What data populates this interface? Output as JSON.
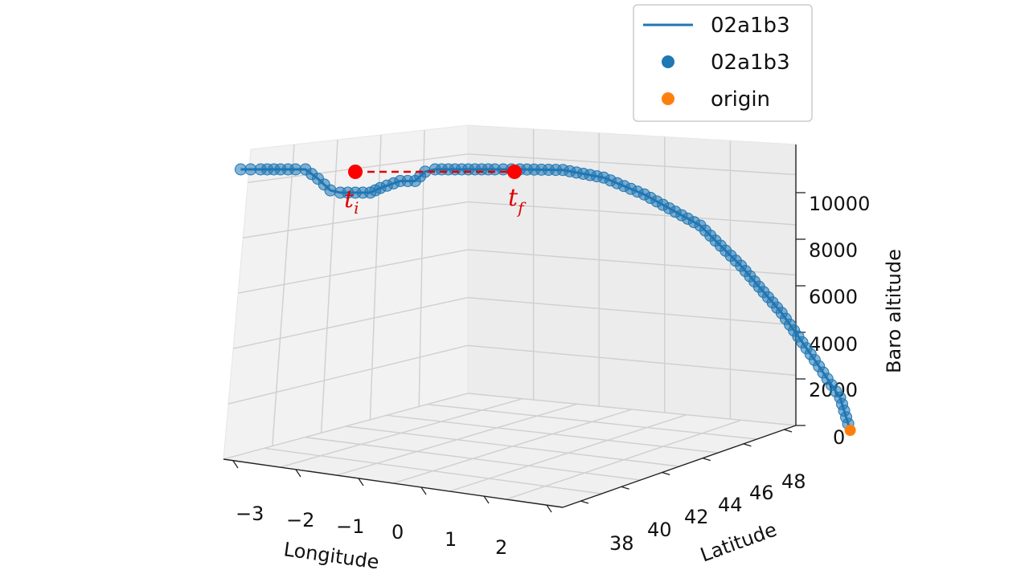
{
  "chart_data": {
    "type": "line",
    "projection": "3d",
    "xlabel": "Longitude",
    "ylabel": "Latitude",
    "zlabel": "Baro altitude",
    "x_ticks": [
      "−3",
      "−2",
      "−1",
      "0",
      "1",
      "2"
    ],
    "y_ticks": [
      "38",
      "40",
      "42",
      "44",
      "46",
      "48"
    ],
    "z_ticks": [
      "0",
      "2000",
      "4000",
      "6000",
      "8000",
      "10000"
    ],
    "grid": true,
    "legend_position": "top-right",
    "legend": [
      {
        "label": "02a1b3",
        "kind": "line",
        "color": "#1f77b4"
      },
      {
        "label": "02a1b3",
        "kind": "marker",
        "color": "#1f77b4"
      },
      {
        "label": "origin",
        "kind": "marker",
        "color": "#ff7f0e"
      }
    ],
    "series": [
      {
        "name": "02a1b3",
        "color": "#1f77b4",
        "points": [
          {
            "lon": -3.3,
            "lat": 44.0,
            "alt": 11000
          },
          {
            "lon": -3.1,
            "lat": 44.0,
            "alt": 11000
          },
          {
            "lon": -2.9,
            "lat": 44.0,
            "alt": 11000
          },
          {
            "lon": -2.5,
            "lat": 44.0,
            "alt": 11000
          },
          {
            "lon": -2.2,
            "lat": 44.0,
            "alt": 11000
          },
          {
            "lon": -2.0,
            "lat": 44.0,
            "alt": 11000
          },
          {
            "lon": -1.75,
            "lat": 44.0,
            "alt": 10600
          },
          {
            "lon": -1.5,
            "lat": 44.0,
            "alt": 10100
          },
          {
            "lon": -1.3,
            "lat": 44.0,
            "alt": 10000
          },
          {
            "lon": -0.7,
            "lat": 44.0,
            "alt": 10000
          },
          {
            "lon": -0.5,
            "lat": 44.0,
            "alt": 10200
          },
          {
            "lon": -0.1,
            "lat": 44.0,
            "alt": 10500
          },
          {
            "lon": 0.2,
            "lat": 44.0,
            "alt": 10500
          },
          {
            "lon": 0.4,
            "lat": 44.0,
            "alt": 10900
          },
          {
            "lon": 0.6,
            "lat": 44.0,
            "alt": 11000
          },
          {
            "lon": 1.0,
            "lat": 44.0,
            "alt": 11000
          },
          {
            "lon": 1.4,
            "lat": 44.0,
            "alt": 11000
          },
          {
            "lon": 1.8,
            "lat": 44.0,
            "alt": 11000
          },
          {
            "lon": 2.3,
            "lat": 44.0,
            "alt": 11000
          },
          {
            "lon": 2.4,
            "lat": 43.5,
            "alt": 11000
          },
          {
            "lon": 2.45,
            "lat": 43.0,
            "alt": 10700
          },
          {
            "lon": 2.5,
            "lat": 42.5,
            "alt": 10000
          },
          {
            "lon": 2.55,
            "lat": 41.8,
            "alt": 8700
          },
          {
            "lon": 2.6,
            "lat": 41.3,
            "alt": 7000
          },
          {
            "lon": 2.65,
            "lat": 40.8,
            "alt": 5000
          },
          {
            "lon": 2.7,
            "lat": 40.4,
            "alt": 3000
          },
          {
            "lon": 2.75,
            "lat": 40.1,
            "alt": 1400
          },
          {
            "lon": 2.8,
            "lat": 40.0,
            "alt": 0
          }
        ]
      }
    ],
    "origin": {
      "lon": 2.8,
      "lat": 40.0,
      "alt": 0,
      "color": "#ff7f0e"
    },
    "annotations": [
      {
        "label": "t",
        "sub": "i",
        "lon": -1.75,
        "lat": 44.0,
        "alt": 11000
      },
      {
        "label": "t",
        "sub": "f",
        "lon": 0.7,
        "lat": 44.0,
        "alt": 11000
      }
    ]
  }
}
